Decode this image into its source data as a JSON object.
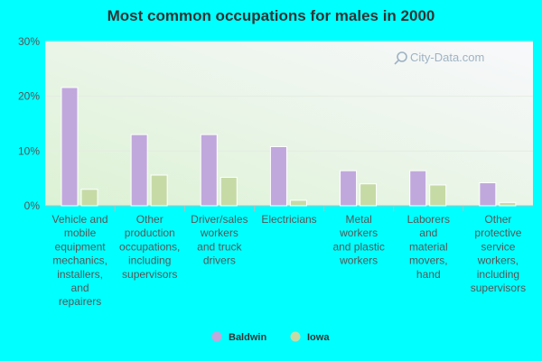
{
  "chart_data": {
    "type": "bar",
    "title": "Most common occupations for males in 2000",
    "xlabel": "",
    "ylabel": "",
    "ylim": [
      0,
      30
    ],
    "y_ticks": [
      "0%",
      "10%",
      "20%",
      "30%"
    ],
    "grid": true,
    "legend_position": "bottom-center",
    "categories": [
      [
        "Vehicle and",
        "mobile",
        "equipment",
        "mechanics,",
        "installers,",
        "and",
        "repairers"
      ],
      [
        "Other",
        "production",
        "occupations,",
        "including",
        "supervisors"
      ],
      [
        "Driver/sales",
        "workers",
        "and truck",
        "drivers"
      ],
      [
        "Electricians"
      ],
      [
        "Metal",
        "workers",
        "and plastic",
        "workers"
      ],
      [
        "Laborers",
        "and",
        "material",
        "movers,",
        "hand"
      ],
      [
        "Other",
        "protective",
        "service",
        "workers,",
        "including",
        "supervisors"
      ]
    ],
    "series": [
      {
        "name": "Baldwin",
        "color": "#c0a8dc",
        "values": [
          21.6,
          13.0,
          13.0,
          10.8,
          6.4,
          6.4,
          4.2
        ]
      },
      {
        "name": "Iowa",
        "color": "#c6daa6",
        "values": [
          3.0,
          5.6,
          5.2,
          1.0,
          4.0,
          3.8,
          0.6
        ]
      }
    ]
  },
  "watermark": "City-Data.com",
  "colors": {
    "background": "#00ffff",
    "plot_gradient_top": "#f6f6fb",
    "plot_gradient_bottom": "#dff2d8"
  }
}
